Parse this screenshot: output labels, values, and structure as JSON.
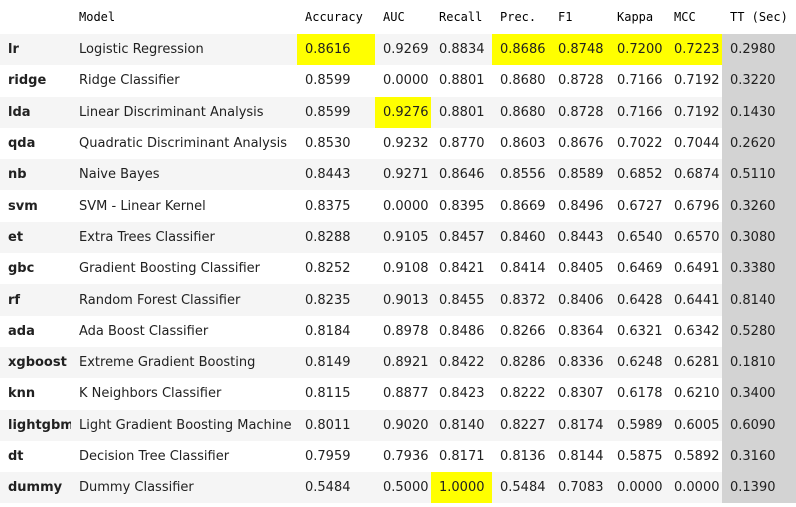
{
  "colors": {
    "highlight": "#ffff00",
    "tt_column": "#d3d3d3",
    "row_stripe": "#f5f5f5"
  },
  "headers": [
    "",
    "Model",
    "Accuracy",
    "AUC",
    "Recall",
    "Prec.",
    "F1",
    "Kappa",
    "MCC",
    "TT (Sec)"
  ],
  "rows": [
    {
      "id": "lr",
      "model": "Logistic Regression",
      "accuracy": "0.8616",
      "auc": "0.9269",
      "recall": "0.8834",
      "prec": "0.8686",
      "f1": "0.8748",
      "kappa": "0.7200",
      "mcc": "0.7223",
      "tt": "0.2980"
    },
    {
      "id": "ridge",
      "model": "Ridge Classifier",
      "accuracy": "0.8599",
      "auc": "0.0000",
      "recall": "0.8801",
      "prec": "0.8680",
      "f1": "0.8728",
      "kappa": "0.7166",
      "mcc": "0.7192",
      "tt": "0.3220"
    },
    {
      "id": "lda",
      "model": "Linear Discriminant Analysis",
      "accuracy": "0.8599",
      "auc": "0.9276",
      "recall": "0.8801",
      "prec": "0.8680",
      "f1": "0.8728",
      "kappa": "0.7166",
      "mcc": "0.7192",
      "tt": "0.1430"
    },
    {
      "id": "qda",
      "model": "Quadratic Discriminant Analysis",
      "accuracy": "0.8530",
      "auc": "0.9232",
      "recall": "0.8770",
      "prec": "0.8603",
      "f1": "0.8676",
      "kappa": "0.7022",
      "mcc": "0.7044",
      "tt": "0.2620"
    },
    {
      "id": "nb",
      "model": "Naive Bayes",
      "accuracy": "0.8443",
      "auc": "0.9271",
      "recall": "0.8646",
      "prec": "0.8556",
      "f1": "0.8589",
      "kappa": "0.6852",
      "mcc": "0.6874",
      "tt": "0.5110"
    },
    {
      "id": "svm",
      "model": "SVM - Linear Kernel",
      "accuracy": "0.8375",
      "auc": "0.0000",
      "recall": "0.8395",
      "prec": "0.8669",
      "f1": "0.8496",
      "kappa": "0.6727",
      "mcc": "0.6796",
      "tt": "0.3260"
    },
    {
      "id": "et",
      "model": "Extra Trees Classifier",
      "accuracy": "0.8288",
      "auc": "0.9105",
      "recall": "0.8457",
      "prec": "0.8460",
      "f1": "0.8443",
      "kappa": "0.6540",
      "mcc": "0.6570",
      "tt": "0.3080"
    },
    {
      "id": "gbc",
      "model": "Gradient Boosting Classifier",
      "accuracy": "0.8252",
      "auc": "0.9108",
      "recall": "0.8421",
      "prec": "0.8414",
      "f1": "0.8405",
      "kappa": "0.6469",
      "mcc": "0.6491",
      "tt": "0.3380"
    },
    {
      "id": "rf",
      "model": "Random Forest Classifier",
      "accuracy": "0.8235",
      "auc": "0.9013",
      "recall": "0.8455",
      "prec": "0.8372",
      "f1": "0.8406",
      "kappa": "0.6428",
      "mcc": "0.6441",
      "tt": "0.8140"
    },
    {
      "id": "ada",
      "model": "Ada Boost Classifier",
      "accuracy": "0.8184",
      "auc": "0.8978",
      "recall": "0.8486",
      "prec": "0.8266",
      "f1": "0.8364",
      "kappa": "0.6321",
      "mcc": "0.6342",
      "tt": "0.5280"
    },
    {
      "id": "xgboost",
      "model": "Extreme Gradient Boosting",
      "accuracy": "0.8149",
      "auc": "0.8921",
      "recall": "0.8422",
      "prec": "0.8286",
      "f1": "0.8336",
      "kappa": "0.6248",
      "mcc": "0.6281",
      "tt": "0.1810"
    },
    {
      "id": "knn",
      "model": "K Neighbors Classifier",
      "accuracy": "0.8115",
      "auc": "0.8877",
      "recall": "0.8423",
      "prec": "0.8222",
      "f1": "0.8307",
      "kappa": "0.6178",
      "mcc": "0.6210",
      "tt": "0.3400"
    },
    {
      "id": "lightgbm",
      "model": "Light Gradient Boosting Machine",
      "accuracy": "0.8011",
      "auc": "0.9020",
      "recall": "0.8140",
      "prec": "0.8227",
      "f1": "0.8174",
      "kappa": "0.5989",
      "mcc": "0.6005",
      "tt": "0.6090"
    },
    {
      "id": "dt",
      "model": "Decision Tree Classifier",
      "accuracy": "0.7959",
      "auc": "0.7936",
      "recall": "0.8171",
      "prec": "0.8136",
      "f1": "0.8144",
      "kappa": "0.5875",
      "mcc": "0.5892",
      "tt": "0.3160"
    },
    {
      "id": "dummy",
      "model": "Dummy Classifier",
      "accuracy": "0.5484",
      "auc": "0.5000",
      "recall": "1.0000",
      "prec": "0.5484",
      "f1": "0.7083",
      "kappa": "0.0000",
      "mcc": "0.0000",
      "tt": "0.1390"
    }
  ],
  "highlighted_cells": {
    "lr": [
      "accuracy",
      "prec",
      "f1",
      "kappa",
      "mcc"
    ],
    "lda": [
      "auc"
    ],
    "dummy": [
      "recall"
    ]
  }
}
